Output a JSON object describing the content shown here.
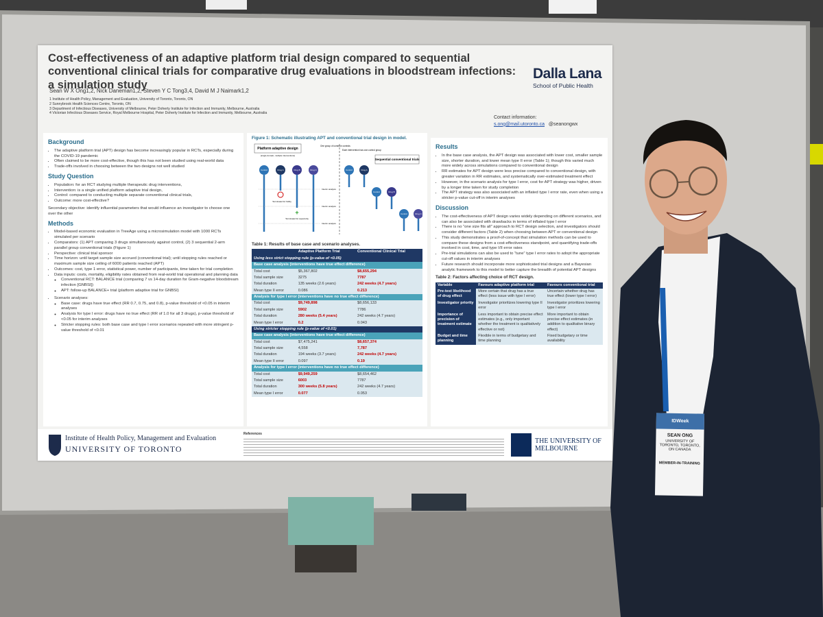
{
  "poster": {
    "title": "Cost-effectiveness of an adaptive platform trial design compared to sequential conventional clinical trials for comparative drug evaluations in bloodstream infections: a simulation study",
    "authors": "Sean W X Ong1,2, Nick Daneman1,2, Steven Y C Tong3,4, David M J Naimark1,2",
    "affiliations": [
      "1 Institute of Health Policy, Management and Evaluation, University of Toronto, Toronto, ON",
      "2 Sunnybrook Health Sciences Centre, Toronto, ON",
      "3 Department of Infectious Diseases, University of Melbourne, Peter Doherty Institute for Infection and Immunity, Melbourne, Australia",
      "4 Victorian Infectious Diseases Service, Royal Melbourne Hospital, Peter Doherty Institute for Infection and Immunity, Melbourne, Australia"
    ],
    "logo_name": "Dalla Lana",
    "logo_sub": "School of Public Health",
    "contact_label": "Contact information:",
    "email": "s.ong@mail.utoronto.ca",
    "handle": "@seanongwx",
    "background": {
      "heading": "Background",
      "bullets": [
        "The adaptive platform trial (APT) design has become increasingly popular in RCTs, especially during the COVID-19 pandemic",
        "Often claimed to be more cost-effective, though this has not been studied using real-world data",
        "Trade-offs involved in choosing between the two designs not well studied"
      ]
    },
    "study_question": {
      "heading": "Study Question",
      "bullets": [
        "Population: for an RCT studying multiple therapeutic drug interventions,",
        "Intervention: is a single unified platform adaptive trial design,",
        "Control: compared to conducting multiple separate conventional clinical trials,",
        "Outcome: more cost-effective?"
      ],
      "secondary": "Secondary objective: identify influential parameters that would influence an investigator to choose one over the other"
    },
    "methods": {
      "heading": "Methods",
      "bullets": [
        "Model-based economic evaluation in TreeAge using a microsimulation model with 1000 RCTs simulated per scenario",
        "Comparators: (1) APT comparing 3 drugs simultaneously against control, (2) 3 sequential 2-arm parallel group conventional trials (Figure 1)",
        "Perspective: clinical trial sponsor",
        "Time horizon: until target sample size accrued (conventional trial); until stopping rules reached or maximum sample size ceiling of 6000 patients reached (APT)",
        "Outcomes: cost, type 1 error, statistical power, number of participants, time taken for trial completion",
        {
          "text": "Data inputs: costs, mortality, eligibility rates obtained from real-world trial operational and planning data",
          "sub": [
            "Conventional RCT: BALANCE trial (comparing 7 vs 14-day duration for Gram-negative bloodstream infection [GNBSI])",
            "APT: follow-up BALANCE+ trial (platform adaptive trial for GNBSI)"
          ]
        },
        {
          "text": "Scenario analyses:",
          "sub": [
            "Base case: drugs have true effect (RR 0.7, 0.75, and 0.8), p-value threshold of <0.05 in interim analyses",
            "Analysis for type I error: drugs have no true effect (RR of 1.0 for all 3 drugs), p-value threshold of <0.05 for interim analyses",
            "Stricter stopping rules: both base case and type I error scenarios repeated with more stringent p-value threshold of <0.01"
          ]
        }
      ]
    },
    "figure1": {
      "caption": "Figure 1: Schematic illustrating APT and conventional trial design in model.",
      "left_label": "Platform adaptive design",
      "left_sub": "(single domain, multiple interventions)",
      "note_left": "One group of common controls",
      "note_right": "Each intervention has own control group",
      "right_label": "Sequential conventional trials",
      "arms": [
        "Control",
        "Drug A",
        "Drug B",
        "Drug C"
      ],
      "futility": "Terminated for futility",
      "superiority": "Terminated for superiority",
      "interim": "Interim analysis"
    },
    "table1": {
      "caption": "Table 1: Results of base case and scenario analyses.",
      "columns": [
        "Adaptive Platform Trial",
        "Conventional Clinical Trial"
      ],
      "rules": [
        {
          "label": "Using less strict stopping rule (p-value of <0.05)",
          "analyses": [
            {
              "label": "Base case analysis (interventions have true effect difference)",
              "rows": [
                [
                  "Total cost",
                  "$5,367,802",
                  "$8,655,294"
                ],
                [
                  "Total sample size",
                  "3275",
                  "7787"
                ],
                [
                  "Total duration",
                  "135 weeks (2.6 years)",
                  "242 weeks (4.7 years)"
                ],
                [
                  "Mean type II error",
                  "0.086",
                  "0.213"
                ]
              ]
            },
            {
              "label": "Analysis for type I error (interventions have no true effect difference)",
              "rows": [
                [
                  "Total cost",
                  "$9,749,898",
                  "$8,656,133"
                ],
                [
                  "Total sample size",
                  "5902",
                  "7786"
                ],
                [
                  "Total duration",
                  "280 weeks (5.4 years)",
                  "242 weeks (4.7 years)"
                ],
                [
                  "Mean type I error",
                  "0.2",
                  "0.043"
                ]
              ]
            }
          ]
        },
        {
          "label": "Using stricter stopping rule (p-value of <0.01)",
          "analyses": [
            {
              "label": "Base case analysis (interventions have true effect difference)",
              "rows": [
                [
                  "Total cost",
                  "$7,475,241",
                  "$8,657,374"
                ],
                [
                  "Total sample size",
                  "4,558",
                  "7,787"
                ],
                [
                  "Total duration",
                  "194 weeks (3.7 years)",
                  "242 weeks (4.7 years)"
                ],
                [
                  "Mean type II error",
                  "0.097",
                  "0.19"
                ]
              ]
            },
            {
              "label": "Analysis for type I error (interventions have no true effect difference)",
              "rows": [
                [
                  "Total cost",
                  "$9,949,259",
                  "$8,654,462"
                ],
                [
                  "Total sample size",
                  "6003",
                  "7787"
                ],
                [
                  "Total duration",
                  "300 weeks (5.8 years)",
                  "242 weeks (4.7 years)"
                ],
                [
                  "Mean type I error",
                  "0.077",
                  "0.053"
                ]
              ]
            }
          ]
        }
      ]
    },
    "results": {
      "heading": "Results",
      "bullets": [
        "In the base case analysis, the APT design was associated with lower cost, smaller sample size, shorter duration, and lower mean type II error (Table 1); though this varied much more widely across simulations compared to conventional design",
        "RR estimates for APT design were less precise compared to conventional design, with greater variation in RR estimates, and systematically over-estimated treatment effect",
        "However, in the scenario analysis for type I error, cost for APT strategy was higher, driven by a longer time taken for study completion",
        "The APT strategy was also associated with an inflated type I error rate, even when using a stricter p-value cut-off in interim analyses"
      ]
    },
    "discussion": {
      "heading": "Discussion",
      "bullets": [
        "The cost-effectiveness of APT design varies widely depending on different scenarios, and can also be associated with drawbacks in terms of inflated type I error",
        "There is no “one size fits all” approach to RCT design selection, and investigators should consider different factors (Table 2) when choosing between APT or conventional design",
        "This study demonstrates a proof-of-concept that simulation methods can be used to compare these designs from a cost-effectiveness standpoint, and quantifying trade-offs involved in cost, time, and type I/II error rates",
        "Pre-trial simulations can also be used to “tune” type I error rates to adopt the appropriate cut-off values in interim analyses",
        "Future research should incorporate more sophisticated trial designs and a Bayesian analytic framework to this model to better capture the breadth of potential APT designs"
      ]
    },
    "table2": {
      "caption": "Table 2: Factors affecting choice of RCT design.",
      "columns": [
        "Variable",
        "Favours adaptive platform trial",
        "Favours conventional trial"
      ],
      "rows": [
        [
          "Pre-test likelihood of drug effect",
          "More certain that drug has a true effect (less issue with type I error)",
          "Uncertain whether drug has true effect (lower type I error)"
        ],
        [
          "Investigator priority",
          "Investigator prioritizes lowering type II error",
          "Investigator prioritizes lowering type I error"
        ],
        [
          "Importance of precision of treatment estimate",
          "Less important to obtain precise effect estimates (e.g., only important whether the treatment is qualitatively effective or not)",
          "More important to obtain precise effect estimates (in addition to qualitative binary effect)"
        ],
        [
          "Budget and time planning",
          "Flexible in terms of budgetary and time planning",
          "Fixed budgetary or time availability"
        ]
      ]
    },
    "references_heading": "References",
    "uoft_institute": "Institute of Health Policy, Management and Evaluation",
    "uoft_name": "UNIVERSITY OF TORONTO",
    "melbourne_name": "THE UNIVERSITY OF MELBOURNE"
  },
  "badge": {
    "event": "IDWeek",
    "name": "SEAN ONG",
    "institution": "UNIVERSITY OF TORONTO, TORONTO, ON CANADA",
    "role": "MEMBER-IN-TRAINING"
  }
}
